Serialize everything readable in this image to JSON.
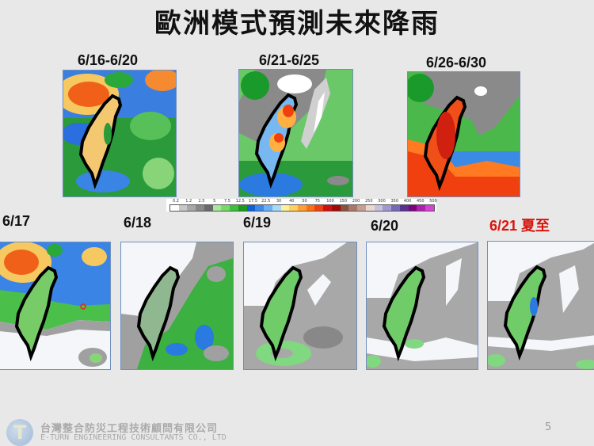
{
  "slide": {
    "title": "歐洲模式預測未來降雨",
    "page_number": "5"
  },
  "weekly_panels": [
    {
      "label": "6/16-6/20",
      "scheme": "wet"
    },
    {
      "label": "6/21-6/25",
      "scheme": "mixed"
    },
    {
      "label": "6/26-6/30",
      "scheme": "heavy"
    }
  ],
  "daily_panels": [
    {
      "label": "6/17",
      "highlight": false
    },
    {
      "label": "6/18",
      "highlight": false
    },
    {
      "label": "6/19",
      "highlight": false
    },
    {
      "label": "6/20",
      "highlight": false
    },
    {
      "label": "6/21 夏至",
      "highlight": true
    }
  ],
  "legend": {
    "ticks": [
      "0.2",
      "1.2",
      "2.5",
      "5",
      "7.5",
      "12.5",
      "17.5",
      "22.5",
      "30",
      "40",
      "50",
      "75",
      "100",
      "150",
      "200",
      "250",
      "300",
      "350",
      "400",
      "450",
      "500"
    ],
    "colors": [
      "#ffffff",
      "#c8c8c8",
      "#a8a8a8",
      "#888888",
      "#6a6a6a",
      "#a8e89a",
      "#78d868",
      "#3cc03c",
      "#1a9a1a",
      "#1060d8",
      "#3a88ee",
      "#6ab0f6",
      "#a8d8fa",
      "#fff0a0",
      "#ffd060",
      "#ffa030",
      "#ff7010",
      "#f04010",
      "#d01010",
      "#a00808",
      "#8a5040",
      "#a87868",
      "#c8a090",
      "#e8d8d0",
      "#c8c0e0",
      "#a098d0",
      "#7868b8",
      "#5a3090",
      "#800080",
      "#b020b0",
      "#d840d8"
    ]
  },
  "colors": {
    "highlight_label": "#d8150d",
    "background": "#e8e8e8"
  },
  "footer": {
    "company_zh": "台灣整合防災工程技術顧問有限公司",
    "company_en": "E-TURN ENGINEERING CONSULTANTS CO., LTD"
  }
}
